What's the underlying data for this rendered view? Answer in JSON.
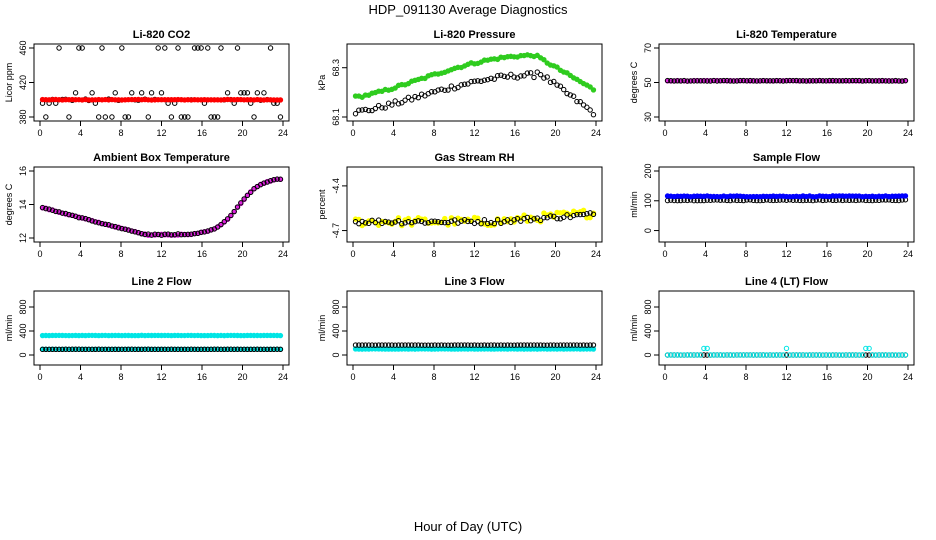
{
  "figure": {
    "title": "HDP_091130  Average Diagnostics",
    "xlabel": "Hour of Day (UTC)"
  },
  "colors": {
    "black": "#000000",
    "red": "#ff0000",
    "green": "#2fcc1f",
    "magenta": "#dd22dd",
    "yellow": "#ffff00",
    "blue": "#0000ff",
    "cyan": "#00e5e5"
  },
  "chart_data": [
    {
      "type": "scatter",
      "title": "Li-820 CO2",
      "ylabel": "Licor ppm",
      "xlim": [
        0,
        24
      ],
      "ylim": [
        380,
        460
      ],
      "xticks": [
        0,
        4,
        8,
        12,
        16,
        20,
        24
      ],
      "yticks": [
        380,
        420,
        460
      ],
      "series": [
        {
          "name": "black",
          "color": "#000000",
          "pattern": "co2_scatter",
          "base": 400,
          "amp": 60
        },
        {
          "name": "red",
          "color": "#ff0000",
          "pattern": "flat",
          "base": 400,
          "amp": 0.6,
          "filled": true
        }
      ]
    },
    {
      "type": "scatter",
      "title": "Li-820 Pressure",
      "ylabel": "kPa",
      "xlim": [
        0,
        24
      ],
      "ylim": [
        68.1,
        68.38
      ],
      "xticks": [
        0,
        4,
        8,
        12,
        16,
        20,
        24
      ],
      "yticks": [
        68.1,
        68.3
      ],
      "series": [
        {
          "name": "black",
          "color": "#000000",
          "pattern": "pressure_black",
          "base": 68.1,
          "amp": 1
        },
        {
          "name": "green",
          "color": "#2fcc1f",
          "pattern": "pressure_green",
          "base": 68.1,
          "amp": 1,
          "filled": true
        }
      ]
    },
    {
      "type": "scatter",
      "title": "Li-820 Temperature",
      "ylabel": "degrees C",
      "xlim": [
        0,
        24
      ],
      "ylim": [
        30,
        70
      ],
      "xticks": [
        0,
        4,
        8,
        12,
        16,
        20,
        24
      ],
      "yticks": [
        30,
        50,
        70
      ],
      "series": [
        {
          "name": "magenta",
          "color": "#dd22dd",
          "pattern": "flat",
          "base": 51,
          "amp": 0.3,
          "filled": true
        },
        {
          "name": "black",
          "color": "#000000",
          "pattern": "flat",
          "base": 51,
          "amp": 0.3
        }
      ]
    },
    {
      "type": "scatter",
      "title": "Ambient Box Temperature",
      "ylabel": "degrees C",
      "xlim": [
        0,
        24
      ],
      "ylim": [
        12,
        16
      ],
      "xticks": [
        0,
        4,
        8,
        12,
        16,
        20,
        24
      ],
      "yticks": [
        12,
        14,
        16
      ],
      "series": [
        {
          "name": "magenta",
          "color": "#dd22dd",
          "pattern": "ambient",
          "base": 0,
          "amp": 1,
          "filled": true
        },
        {
          "name": "black",
          "color": "#000000",
          "pattern": "ambient",
          "base": 0,
          "amp": 1
        }
      ]
    },
    {
      "type": "scatter",
      "title": "Gas Stream RH",
      "ylabel": "percent",
      "xlim": [
        0,
        24
      ],
      "ylim": [
        -4.75,
        -4.3
      ],
      "xticks": [
        0,
        4,
        8,
        12,
        16,
        20,
        24
      ],
      "yticks": [
        -4.4,
        -4.7
      ],
      "series": [
        {
          "name": "yellow",
          "color": "#ffff00",
          "pattern": "rh_yellow",
          "base": -4.64,
          "amp": 0.04,
          "filled": true
        },
        {
          "name": "black",
          "color": "#000000",
          "pattern": "rh_black",
          "base": -4.64,
          "amp": 0.03
        }
      ]
    },
    {
      "type": "scatter",
      "title": "Sample Flow",
      "ylabel": "ml/min",
      "xlim": [
        0,
        24
      ],
      "ylim": [
        -25,
        200
      ],
      "xticks": [
        0,
        4,
        8,
        12,
        16,
        20,
        24
      ],
      "yticks": [
        0,
        100,
        200
      ],
      "series": [
        {
          "name": "black",
          "color": "#000000",
          "pattern": "flat",
          "base": 102,
          "amp": 3
        },
        {
          "name": "blue",
          "color": "#0000ff",
          "pattern": "flat",
          "base": 115,
          "amp": 3,
          "filled": true
        }
      ]
    },
    {
      "type": "scatter",
      "title": "Line 2 Flow",
      "ylabel": "ml/min",
      "xlim": [
        0,
        24
      ],
      "ylim": [
        -100,
        1000
      ],
      "xticks": [
        0,
        4,
        8,
        12,
        16,
        20,
        24
      ],
      "yticks": [
        0,
        400,
        800
      ],
      "series": [
        {
          "name": "cyan",
          "color": "#00e5e5",
          "pattern": "flat",
          "base": 325,
          "amp": 4,
          "filled": true
        },
        {
          "name": "cyan-low",
          "color": "#00e5e5",
          "pattern": "flat",
          "base": 95,
          "amp": 2,
          "filled": true
        },
        {
          "name": "black",
          "color": "#000000",
          "pattern": "flat",
          "base": 95,
          "amp": 2
        }
      ]
    },
    {
      "type": "scatter",
      "title": "Line 3 Flow",
      "ylabel": "ml/min",
      "xlim": [
        0,
        24
      ],
      "ylim": [
        -100,
        1000
      ],
      "xticks": [
        0,
        4,
        8,
        12,
        16,
        20,
        24
      ],
      "yticks": [
        0,
        400,
        800
      ],
      "series": [
        {
          "name": "cyan",
          "color": "#00e5e5",
          "pattern": "flat",
          "base": 100,
          "amp": 4,
          "filled": true
        },
        {
          "name": "black",
          "color": "#000000",
          "pattern": "flat",
          "base": 165,
          "amp": 2
        }
      ]
    },
    {
      "type": "scatter",
      "title": "Line 4 (LT) Flow",
      "ylabel": "ml/min",
      "xlim": [
        0,
        24
      ],
      "ylim": [
        -100,
        1000
      ],
      "xticks": [
        0,
        4,
        8,
        12,
        16,
        20,
        24
      ],
      "yticks": [
        0,
        400,
        800
      ],
      "series": [
        {
          "name": "black",
          "color": "#000000",
          "pattern": "flat",
          "base": 0,
          "amp": 1
        },
        {
          "name": "cyan",
          "color": "#00e5e5",
          "pattern": "spikes",
          "base": 0,
          "amp": 110
        }
      ]
    }
  ]
}
